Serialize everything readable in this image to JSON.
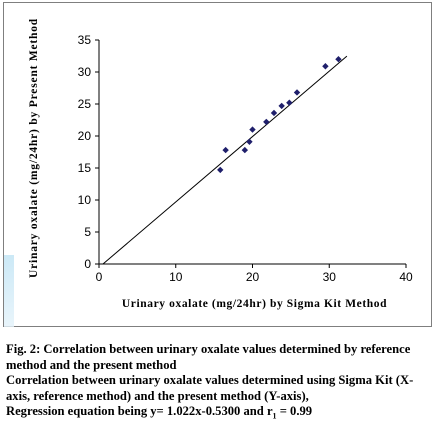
{
  "chart_data": {
    "type": "scatter",
    "xlabel": "Urinary oxalate (mg/24hr) by Sigma Kit Method",
    "ylabel": "Urinary oxalate (mg/24hr) by Present Method",
    "xlim": [
      0,
      40
    ],
    "ylim": [
      0,
      35
    ],
    "xticks": [
      0,
      10,
      20,
      30,
      40
    ],
    "yticks": [
      0,
      5,
      10,
      15,
      20,
      25,
      30,
      35
    ],
    "grid": false,
    "points": [
      {
        "x": 15.8,
        "y": 14.7
      },
      {
        "x": 16.5,
        "y": 17.8
      },
      {
        "x": 19.0,
        "y": 17.8
      },
      {
        "x": 19.6,
        "y": 19.1
      },
      {
        "x": 20.0,
        "y": 21.0
      },
      {
        "x": 21.8,
        "y": 22.2
      },
      {
        "x": 22.8,
        "y": 23.6
      },
      {
        "x": 23.8,
        "y": 24.7
      },
      {
        "x": 24.8,
        "y": 25.2
      },
      {
        "x": 25.8,
        "y": 26.8
      },
      {
        "x": 29.5,
        "y": 30.9
      },
      {
        "x": 31.2,
        "y": 32.0
      }
    ],
    "regression": {
      "slope": 1.022,
      "intercept": -0.53,
      "x_range": [
        0,
        32.3
      ]
    }
  },
  "caption": {
    "figure_label": "Fig. 2: Correlation between urinary oxalate values determined by reference method and the present method",
    "description": "Correlation between urinary oxalate values determined using Sigma Kit (X-axis, reference method) and the present method (Y-axis),",
    "equation_prefix": "Regression equation being y= 1.022x-0.5300 and r",
    "equation_subscript": "1",
    "equation_suffix": " = 0.99"
  }
}
